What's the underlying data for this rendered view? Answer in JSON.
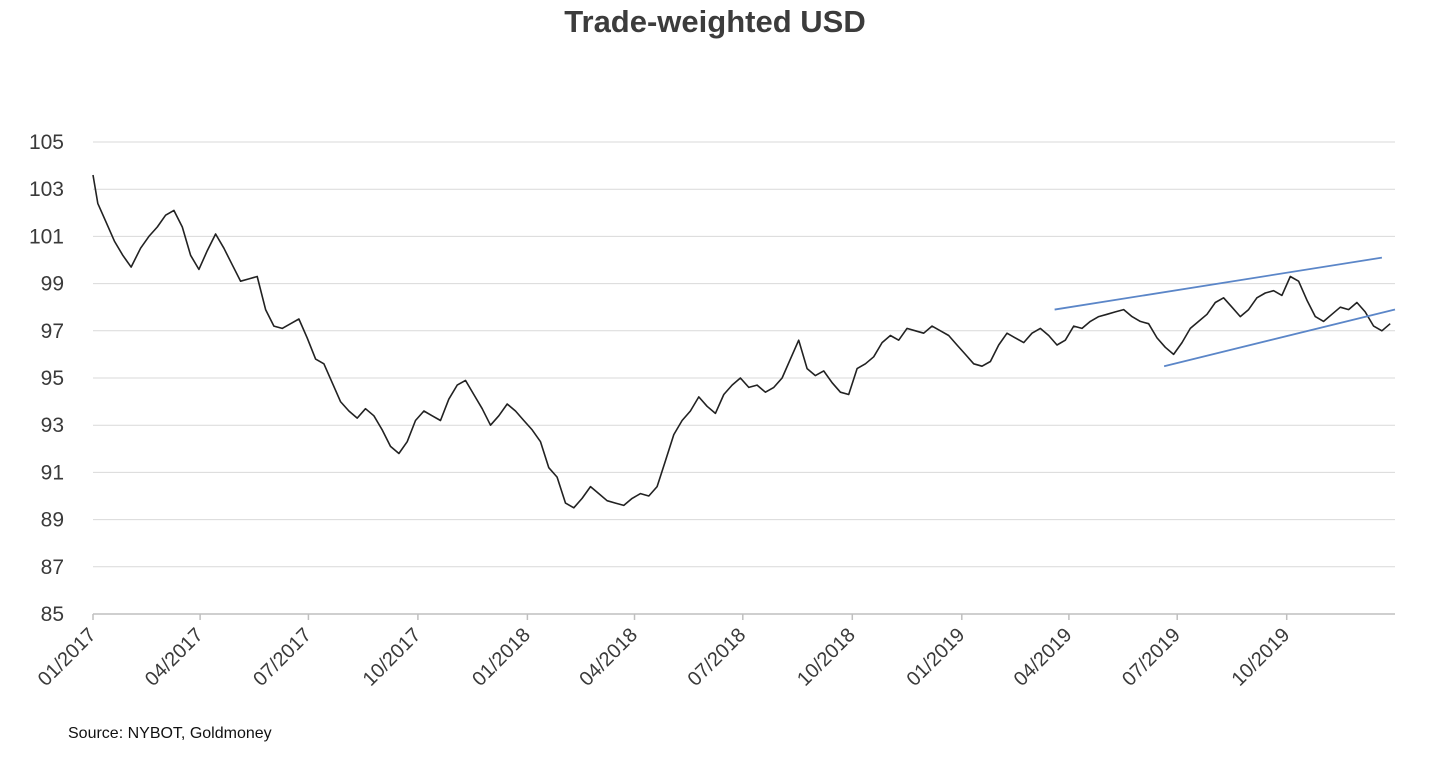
{
  "chart_data": {
    "type": "line",
    "title": "Trade-weighted USD",
    "xlabel": "",
    "ylabel": "",
    "ylim": [
      85,
      105
    ],
    "yticks": [
      "105",
      "103",
      "101",
      "99",
      "97",
      "95",
      "93",
      "91",
      "89",
      "87",
      "85"
    ],
    "xticks": [
      "01/2017",
      "04/2017",
      "07/2017",
      "10/2017",
      "01/2018",
      "04/2018",
      "07/2018",
      "10/2018",
      "01/2019",
      "04/2019",
      "07/2019",
      "10/2019"
    ],
    "xticks_dates": [
      "2017-01-01",
      "2017-04-01",
      "2017-07-01",
      "2017-10-01",
      "2018-01-01",
      "2018-04-01",
      "2018-07-01",
      "2018-10-01",
      "2019-01-01",
      "2019-04-01",
      "2019-07-01",
      "2019-10-01"
    ],
    "xlim": [
      "2017-01-01",
      "2019-12-31"
    ],
    "grid": "horizontal",
    "line_color": "#222222",
    "channel_color": "#5b86c8",
    "series": [
      {
        "name": "",
        "x": [
          "2017-01-01",
          "2017-01-05",
          "2017-01-12",
          "2017-01-19",
          "2017-01-26",
          "2017-02-02",
          "2017-02-10",
          "2017-02-17",
          "2017-02-24",
          "2017-03-03",
          "2017-03-10",
          "2017-03-17",
          "2017-03-24",
          "2017-03-31",
          "2017-04-07",
          "2017-04-14",
          "2017-04-21",
          "2017-04-28",
          "2017-05-05",
          "2017-05-12",
          "2017-05-19",
          "2017-05-26",
          "2017-06-02",
          "2017-06-09",
          "2017-06-16",
          "2017-06-23",
          "2017-06-30",
          "2017-07-07",
          "2017-07-14",
          "2017-07-21",
          "2017-07-28",
          "2017-08-04",
          "2017-08-11",
          "2017-08-18",
          "2017-08-25",
          "2017-09-01",
          "2017-09-08",
          "2017-09-15",
          "2017-09-22",
          "2017-09-29",
          "2017-10-06",
          "2017-10-13",
          "2017-10-20",
          "2017-10-27",
          "2017-11-03",
          "2017-11-10",
          "2017-11-17",
          "2017-11-24",
          "2017-12-01",
          "2017-12-08",
          "2017-12-15",
          "2017-12-22",
          "2017-12-29",
          "2018-01-05",
          "2018-01-12",
          "2018-01-19",
          "2018-01-26",
          "2018-02-02",
          "2018-02-09",
          "2018-02-16",
          "2018-02-23",
          "2018-03-02",
          "2018-03-09",
          "2018-03-16",
          "2018-03-23",
          "2018-03-30",
          "2018-04-06",
          "2018-04-13",
          "2018-04-20",
          "2018-04-27",
          "2018-05-04",
          "2018-05-11",
          "2018-05-18",
          "2018-05-25",
          "2018-06-01",
          "2018-06-08",
          "2018-06-15",
          "2018-06-22",
          "2018-06-29",
          "2018-07-06",
          "2018-07-13",
          "2018-07-20",
          "2018-07-27",
          "2018-08-03",
          "2018-08-10",
          "2018-08-17",
          "2018-08-24",
          "2018-08-31",
          "2018-09-07",
          "2018-09-14",
          "2018-09-21",
          "2018-09-28",
          "2018-10-05",
          "2018-10-12",
          "2018-10-19",
          "2018-10-26",
          "2018-11-02",
          "2018-11-09",
          "2018-11-16",
          "2018-11-23",
          "2018-11-30",
          "2018-12-07",
          "2018-12-14",
          "2018-12-21",
          "2018-12-28",
          "2019-01-04",
          "2019-01-11",
          "2019-01-18",
          "2019-01-25",
          "2019-02-01",
          "2019-02-08",
          "2019-02-15",
          "2019-02-22",
          "2019-03-01",
          "2019-03-08",
          "2019-03-15",
          "2019-03-22",
          "2019-03-29",
          "2019-04-05",
          "2019-04-12",
          "2019-04-19",
          "2019-04-26",
          "2019-05-03",
          "2019-05-10",
          "2019-05-17",
          "2019-05-24",
          "2019-05-31",
          "2019-06-07",
          "2019-06-14",
          "2019-06-21",
          "2019-06-28",
          "2019-07-05",
          "2019-07-12",
          "2019-07-19",
          "2019-07-26",
          "2019-08-02",
          "2019-08-09",
          "2019-08-16",
          "2019-08-23",
          "2019-08-30",
          "2019-09-06",
          "2019-09-13",
          "2019-09-20",
          "2019-09-27",
          "2019-10-04",
          "2019-10-11",
          "2019-10-18",
          "2019-10-25",
          "2019-11-01",
          "2019-11-08",
          "2019-11-15",
          "2019-11-22",
          "2019-11-29",
          "2019-12-06",
          "2019-12-13",
          "2019-12-20",
          "2019-12-27"
        ],
        "y": [
          103.6,
          102.4,
          101.6,
          100.8,
          100.2,
          99.7,
          100.5,
          101.0,
          101.4,
          101.9,
          102.1,
          101.4,
          100.2,
          99.6,
          100.4,
          101.1,
          100.5,
          99.8,
          99.1,
          99.2,
          99.3,
          97.9,
          97.2,
          97.1,
          97.3,
          97.5,
          96.7,
          95.8,
          95.6,
          94.8,
          94.0,
          93.6,
          93.3,
          93.7,
          93.4,
          92.8,
          92.1,
          91.8,
          92.3,
          93.2,
          93.6,
          93.4,
          93.2,
          94.1,
          94.7,
          94.9,
          94.3,
          93.7,
          93.0,
          93.4,
          93.9,
          93.6,
          93.2,
          92.8,
          92.3,
          91.2,
          90.8,
          89.7,
          89.5,
          89.9,
          90.4,
          90.1,
          89.8,
          89.7,
          89.6,
          89.9,
          90.1,
          90.0,
          90.4,
          91.5,
          92.6,
          93.2,
          93.6,
          94.2,
          93.8,
          93.5,
          94.3,
          94.7,
          95.0,
          94.6,
          94.7,
          94.4,
          94.6,
          95.0,
          95.8,
          96.6,
          95.4,
          95.1,
          95.3,
          94.8,
          94.4,
          94.3,
          95.4,
          95.6,
          95.9,
          96.5,
          96.8,
          96.6,
          97.1,
          97.0,
          96.9,
          97.2,
          97.0,
          96.8,
          96.4,
          96.0,
          95.6,
          95.5,
          95.7,
          96.4,
          96.9,
          96.7,
          96.5,
          96.9,
          97.1,
          96.8,
          96.4,
          96.6,
          97.2,
          97.1,
          97.4,
          97.6,
          97.7,
          97.8,
          97.9,
          97.6,
          97.4,
          97.3,
          96.7,
          96.3,
          96.0,
          96.5,
          97.1,
          97.4,
          97.7,
          98.2,
          98.4,
          98.0,
          97.6,
          97.9,
          98.4,
          98.6,
          98.7,
          98.5,
          99.3,
          99.1,
          98.3,
          97.6,
          97.4,
          97.7,
          98.0,
          97.9,
          98.2,
          97.8,
          97.2,
          97.0,
          97.3
        ]
      }
    ],
    "annotations": [
      {
        "type": "trend-channel-upper",
        "x": [
          "2019-03-20",
          "2019-12-20"
        ],
        "y": [
          97.9,
          100.1
        ]
      },
      {
        "type": "trend-channel-lower",
        "x": [
          "2019-06-20",
          "2019-12-31"
        ],
        "y": [
          95.5,
          97.9
        ]
      }
    ]
  },
  "source": "Source: NYBOT, Goldmoney"
}
